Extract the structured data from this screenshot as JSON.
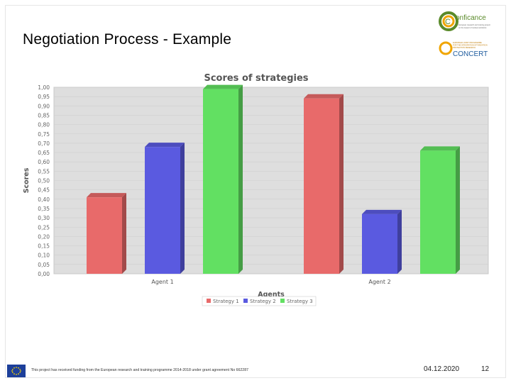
{
  "slide": {
    "title": "Negotiation Process - Example",
    "footer_text": "This project has received funding from the European research and training programme 2014-2018 under grant agreement No 662287",
    "date": "04.12.2020",
    "page_number": "12"
  },
  "logos": {
    "conficance": {
      "name": "conficance-logo",
      "word": "onficance",
      "mark": "C",
      "tagline": [
        "European research and training project",
        "on the impact of nuclear accidents"
      ],
      "color": "#5a8a2a",
      "accent": "#f0a500"
    },
    "concert": {
      "name": "concert-logo",
      "word": "CONCERT",
      "tagline": [
        "EUROPEAN JOINT PROGRAMME",
        "FOR THE INTEGRATION OF RADIATION",
        "PROTECTION RESEARCH"
      ],
      "color": "#1f5c9e",
      "accent": "#f0a500"
    }
  },
  "chart_data": {
    "type": "bar",
    "title": "Scores of strategies",
    "xlabel": "Agents",
    "ylabel": "Scores",
    "categories": [
      "Agent 1",
      "Agent 2"
    ],
    "series": [
      {
        "name": "Strategy 1",
        "color": "#e86a6a",
        "values": [
          0.41,
          0.94
        ]
      },
      {
        "name": "Strategy 2",
        "color": "#5a5ae0",
        "values": [
          0.68,
          0.32
        ]
      },
      {
        "name": "Strategy 3",
        "color": "#62e062",
        "values": [
          0.99,
          0.66
        ]
      }
    ],
    "ylim": [
      0,
      1
    ],
    "yticks": [
      "0,00",
      "0,05",
      "0,10",
      "0,15",
      "0,20",
      "0,25",
      "0,30",
      "0,35",
      "0,40",
      "0,45",
      "0,50",
      "0,55",
      "0,60",
      "0,65",
      "0,70",
      "0,75",
      "0,80",
      "0,85",
      "0,90",
      "0,95",
      "1,00"
    ],
    "grid": true,
    "legend_position": "bottom",
    "plot_background": "#dedede"
  }
}
